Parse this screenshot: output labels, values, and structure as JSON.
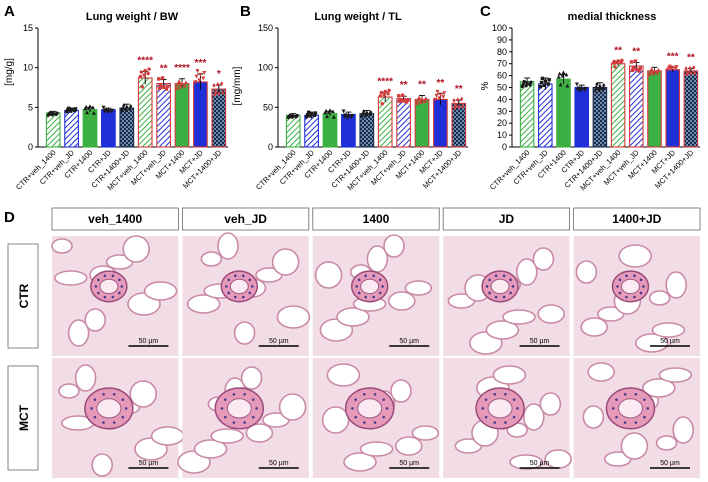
{
  "panels": [
    {
      "letter": "A",
      "title": "Lung weight / BW"
    },
    {
      "letter": "B",
      "title": "Lung weight / TL"
    },
    {
      "letter": "C",
      "title": "medial thickness"
    },
    {
      "letter": "D",
      "title": ""
    }
  ],
  "colors": {
    "green": "#3cb043",
    "blue": "#1f2fd8",
    "gray": "#7f8fa8",
    "mct_red": "#d33a3a",
    "ctr_black": "#1a1a1a",
    "significance": "#b01020"
  },
  "chart_data": [
    {
      "type": "bar",
      "panel": "A",
      "title": "Lung weight / BW",
      "xlabel": "",
      "ylabel": "[mg/g]",
      "ylim": [
        0,
        15
      ],
      "yticks": [
        "0",
        "5",
        "10",
        "15"
      ],
      "categories": [
        "CTR+veh_1400",
        "CTR+veh_JD",
        "CTR+1400",
        "CTR+JD",
        "CTR+1400+JD",
        "MCT+veh_1400",
        "MCT+veh_JD",
        "MCT+1400",
        "MCT+JD",
        "MCT+1400+JD"
      ],
      "values": [
        4.3,
        4.6,
        4.7,
        4.7,
        4.9,
        8.7,
        8.0,
        8.0,
        8.2,
        7.3
      ],
      "errors": [
        0.2,
        0.3,
        0.3,
        0.2,
        0.5,
        0.8,
        0.5,
        0.6,
        1.0,
        0.5
      ],
      "significance": [
        "",
        "",
        "",
        "",
        "",
        "****",
        "**",
        "****",
        "***",
        "*"
      ]
    },
    {
      "type": "bar",
      "panel": "B",
      "title": "Lung weight / TL",
      "xlabel": "",
      "ylabel": "[mg/mm]",
      "ylim": [
        0,
        150
      ],
      "yticks": [
        "0",
        "50",
        "100",
        "150"
      ],
      "categories": [
        "CTR+veh_1400",
        "CTR+veh_JD",
        "CTR+1400",
        "CTR+JD",
        "CTR+1400+JD",
        "MCT+veh_1400",
        "MCT+veh_JD",
        "MCT+1400",
        "MCT+JD",
        "MCT+1400+JD"
      ],
      "values": [
        40,
        40,
        42,
        41,
        42,
        63,
        61,
        60,
        60,
        55
      ],
      "errors": [
        2,
        4,
        3,
        3,
        4,
        6,
        3,
        5,
        7,
        4
      ],
      "significance": [
        "",
        "",
        "",
        "",
        "",
        "****",
        "**",
        "**",
        "**",
        "**"
      ]
    },
    {
      "type": "bar",
      "panel": "C",
      "title": "medial thickness",
      "xlabel": "",
      "ylabel": "%",
      "ylim": [
        0,
        100
      ],
      "yticks": [
        "0",
        "10",
        "20",
        "30",
        "40",
        "50",
        "60",
        "70",
        "80",
        "90",
        "100"
      ],
      "categories": [
        "CTR+veh_1400",
        "CTR+veh_JD",
        "CTR+1400",
        "CTR+JD",
        "CTR+1400+JD",
        "MCT+veh_1400",
        "MCT+veh_JD",
        "MCT+1400",
        "MCT+JD",
        "MCT+1400+JD"
      ],
      "values": [
        55,
        53,
        57,
        50,
        50,
        70,
        68,
        64,
        65,
        64
      ],
      "errors": [
        3,
        5,
        4,
        2,
        4,
        2,
        3,
        3,
        2,
        2
      ],
      "significance": [
        "",
        "",
        "",
        "",
        "",
        "**",
        "**",
        "",
        "***",
        "**"
      ]
    }
  ],
  "histology": {
    "columns": [
      "veh_1400",
      "veh_JD",
      "1400",
      "JD",
      "1400+JD"
    ],
    "rows": [
      "CTR",
      "MCT"
    ],
    "scale_bar": "50 µm"
  }
}
